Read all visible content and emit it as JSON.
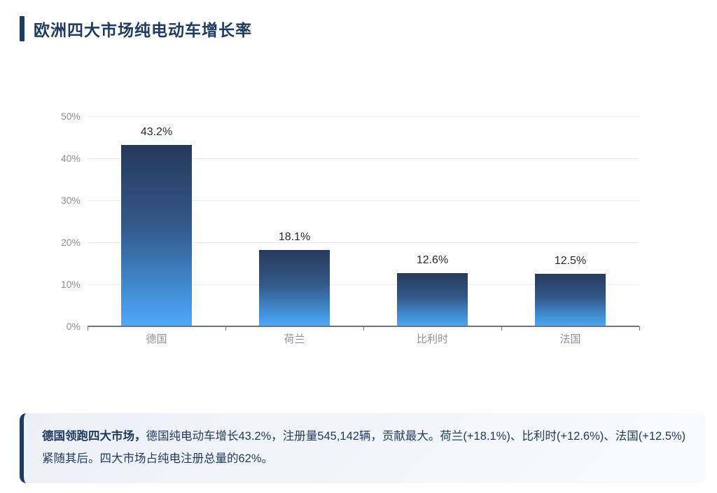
{
  "page": {
    "title": "欧洲四大市场纯电动车增长率"
  },
  "chart_data": {
    "type": "bar",
    "title": "欧洲四大市场纯电动车增长率",
    "categories": [
      "德国",
      "荷兰",
      "比利时",
      "法国"
    ],
    "values": [
      43.2,
      18.1,
      12.6,
      12.5
    ],
    "value_labels": [
      "43.2%",
      "18.1%",
      "12.6%",
      "12.5%"
    ],
    "xlabel": "",
    "ylabel": "",
    "ylim": [
      0,
      50
    ],
    "ytick_step": 10,
    "yticks": [
      "0%",
      "10%",
      "20%",
      "30%",
      "40%",
      "50%"
    ],
    "grid": true,
    "legend": false,
    "bar_color_top": "#27395b",
    "bar_color_bottom": "#4fa8f7"
  },
  "insight": {
    "lead": "德国领跑四大市场，",
    "body": "德国纯电动车增长43.2%，注册量545,142辆，贡献最大。荷兰(+18.1%)、比利时(+12.6%)、法国(+12.5%)紧随其后。四大市场占纯电注册总量的62%。"
  },
  "colors": {
    "accent": "#1e3a5f",
    "axis_label": "#8b919b",
    "value_label": "#26292e",
    "gridline": "#e9edf5",
    "axis_line": "#70747b",
    "insight_bg_start": "#edf1f7",
    "insight_bg_end": "#fafbfd"
  }
}
